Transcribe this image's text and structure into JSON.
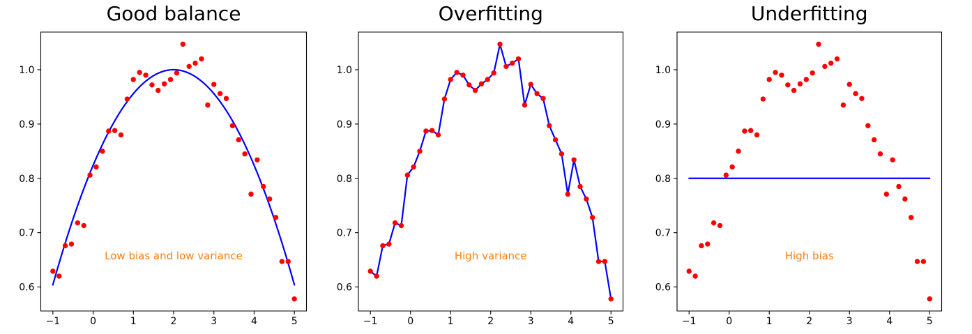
{
  "figure": {
    "background": "#ffffff",
    "point_color": "#ff0000",
    "line_color": "#0000ff",
    "annotation_color": "#ff7f0e",
    "axis_color": "#000000"
  },
  "chart_data": [
    {
      "type": "scatter",
      "title": "Good balance",
      "annotation": {
        "text": "Low bias and low variance",
        "x": 2.0,
        "y": 0.657,
        "color": "#ff7f0e"
      },
      "xlim": [
        -1.3,
        5.3
      ],
      "ylim": [
        0.5558,
        1.0693
      ],
      "x_ticks": [
        -1,
        0,
        1,
        2,
        3,
        4,
        5
      ],
      "y_ticks": [
        0.6,
        0.7,
        0.8,
        0.9,
        1.0
      ],
      "grid": false,
      "scatter": {
        "color": "#ff0000",
        "x": [
          -1.0,
          -0.846,
          -0.692,
          -0.538,
          -0.385,
          -0.231,
          -0.077,
          0.077,
          0.231,
          0.385,
          0.538,
          0.692,
          0.846,
          1.0,
          1.154,
          1.308,
          1.462,
          1.615,
          1.769,
          1.923,
          2.077,
          2.231,
          2.385,
          2.538,
          2.692,
          2.846,
          3.0,
          3.154,
          3.308,
          3.462,
          3.615,
          3.769,
          3.923,
          4.077,
          4.231,
          4.385,
          4.538,
          4.692,
          4.846,
          5.0
        ],
        "y": [
          0.629,
          0.62,
          0.676,
          0.679,
          0.718,
          0.713,
          0.806,
          0.821,
          0.85,
          0.887,
          0.888,
          0.88,
          0.946,
          0.982,
          0.995,
          0.99,
          0.972,
          0.962,
          0.974,
          0.982,
          0.994,
          1.047,
          1.006,
          1.012,
          1.02,
          0.935,
          0.973,
          0.956,
          0.947,
          0.897,
          0.871,
          0.845,
          0.771,
          0.834,
          0.785,
          0.762,
          0.728,
          0.647,
          0.647,
          0.578
        ]
      },
      "fit_line": {
        "kind": "quadratic",
        "color": "#0000ff",
        "peak_x": 2.0,
        "peak_y": 1.0,
        "a": -0.044,
        "x_start": -1.0,
        "x_end": 5.0
      }
    },
    {
      "type": "scatter",
      "title": "Overfitting",
      "annotation": {
        "text": "High variance",
        "x": 2.0,
        "y": 0.657,
        "color": "#ff7f0e"
      },
      "xlim": [
        -1.3,
        5.3
      ],
      "ylim": [
        0.5558,
        1.0693
      ],
      "x_ticks": [
        -1,
        0,
        1,
        2,
        3,
        4,
        5
      ],
      "y_ticks": [
        0.6,
        0.7,
        0.8,
        0.9,
        1.0
      ],
      "grid": false,
      "scatter": {
        "color": "#ff0000",
        "x": [
          -1.0,
          -0.846,
          -0.692,
          -0.538,
          -0.385,
          -0.231,
          -0.077,
          0.077,
          0.231,
          0.385,
          0.538,
          0.692,
          0.846,
          1.0,
          1.154,
          1.308,
          1.462,
          1.615,
          1.769,
          1.923,
          2.077,
          2.231,
          2.385,
          2.538,
          2.692,
          2.846,
          3.0,
          3.154,
          3.308,
          3.462,
          3.615,
          3.769,
          3.923,
          4.077,
          4.231,
          4.385,
          4.538,
          4.692,
          4.846,
          5.0
        ],
        "y": [
          0.629,
          0.62,
          0.676,
          0.679,
          0.718,
          0.713,
          0.806,
          0.821,
          0.85,
          0.887,
          0.888,
          0.88,
          0.946,
          0.982,
          0.995,
          0.99,
          0.972,
          0.962,
          0.974,
          0.982,
          0.994,
          1.047,
          1.006,
          1.012,
          1.02,
          0.935,
          0.973,
          0.956,
          0.947,
          0.897,
          0.871,
          0.845,
          0.771,
          0.834,
          0.785,
          0.762,
          0.728,
          0.647,
          0.647,
          0.578
        ]
      },
      "fit_line": {
        "kind": "through_points",
        "color": "#0000ff"
      }
    },
    {
      "type": "scatter",
      "title": "Underfitting",
      "annotation": {
        "text": "High bias",
        "x": 2.0,
        "y": 0.657,
        "color": "#ff7f0e"
      },
      "xlim": [
        -1.3,
        5.3
      ],
      "ylim": [
        0.5558,
        1.0693
      ],
      "x_ticks": [
        -1,
        0,
        1,
        2,
        3,
        4,
        5
      ],
      "y_ticks": [
        0.6,
        0.7,
        0.8,
        0.9,
        1.0
      ],
      "grid": false,
      "scatter": {
        "color": "#ff0000",
        "x": [
          -1.0,
          -0.846,
          -0.692,
          -0.538,
          -0.385,
          -0.231,
          -0.077,
          0.077,
          0.231,
          0.385,
          0.538,
          0.692,
          0.846,
          1.0,
          1.154,
          1.308,
          1.462,
          1.615,
          1.769,
          1.923,
          2.077,
          2.231,
          2.385,
          2.538,
          2.692,
          2.846,
          3.0,
          3.154,
          3.308,
          3.462,
          3.615,
          3.769,
          3.923,
          4.077,
          4.231,
          4.385,
          4.538,
          4.692,
          4.846,
          5.0
        ],
        "y": [
          0.629,
          0.62,
          0.676,
          0.679,
          0.718,
          0.713,
          0.806,
          0.821,
          0.85,
          0.887,
          0.888,
          0.88,
          0.946,
          0.982,
          0.995,
          0.99,
          0.972,
          0.962,
          0.974,
          0.982,
          0.994,
          1.047,
          1.006,
          1.012,
          1.02,
          0.935,
          0.973,
          0.956,
          0.947,
          0.897,
          0.871,
          0.845,
          0.771,
          0.834,
          0.785,
          0.762,
          0.728,
          0.647,
          0.647,
          0.578
        ]
      },
      "fit_line": {
        "kind": "constant",
        "color": "#0000ff",
        "y": 0.8,
        "x_start": -1.0,
        "x_end": 5.0
      }
    }
  ]
}
